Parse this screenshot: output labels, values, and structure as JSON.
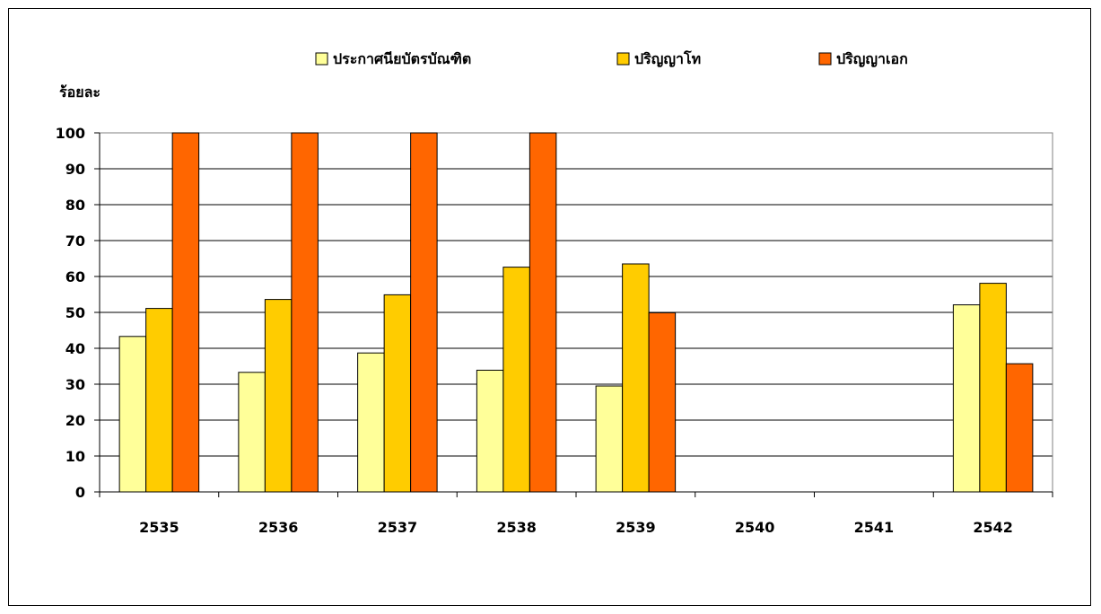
{
  "chart_data": {
    "type": "bar",
    "ylabel": "ร้อยละ",
    "categories": [
      "2535",
      "2536",
      "2537",
      "2538",
      "2539",
      "2540",
      "2541",
      "2542"
    ],
    "ylim": [
      0,
      100
    ],
    "yticks": [
      0,
      10,
      20,
      30,
      40,
      50,
      60,
      70,
      80,
      90,
      100
    ],
    "grid": true,
    "legend": "top",
    "series": [
      {
        "name": "ประกาศนียบัตรบัณฑิต",
        "color": "#FFFF99",
        "values": [
          43.3,
          33.3,
          38.7,
          33.9,
          29.5,
          null,
          null,
          52.1
        ]
      },
      {
        "name": "ปริญญาโท",
        "color": "#FFCC00",
        "values": [
          51.1,
          53.6,
          54.9,
          62.6,
          63.5,
          null,
          null,
          58.1
        ]
      },
      {
        "name": "ปริญญาเอก",
        "color": "#FF6600",
        "values": [
          100,
          100,
          100,
          100,
          49.9,
          null,
          null,
          35.7
        ]
      }
    ]
  }
}
